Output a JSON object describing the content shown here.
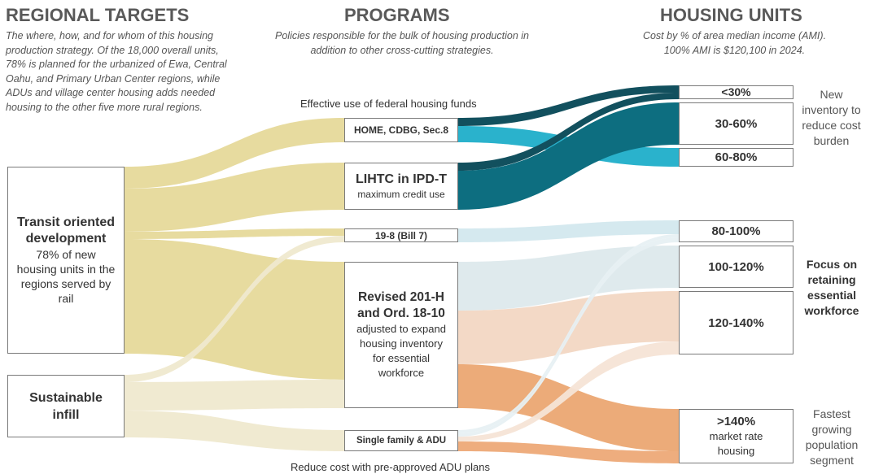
{
  "columns": {
    "targets": {
      "title": "REGIONAL TARGETS",
      "subtitle": "The where, how, and for whom of this housing production strategy. Of the 18,000 overall units, 78% is planned for the urbanized of Ewa, Central Oahu, and Primary Urban Center regions, while ADUs and village center housing adds needed housing to the other five more rural regions."
    },
    "programs": {
      "title": "PROGRAMS",
      "subtitle": "Policies responsible for the bulk of housing production in addition to other cross-cutting strategies."
    },
    "units": {
      "title": "HOUSING UNITS",
      "subtitle_line1": "Cost by % of area median income (AMI).",
      "subtitle_line2": "100% AMI is $120,100 in 2024."
    }
  },
  "targets": {
    "tod": {
      "title": "Transit oriented development",
      "desc": "78% of new housing units in the regions served by rail"
    },
    "infill": {
      "title": "Sustainable infill"
    }
  },
  "programs": {
    "home": {
      "title": "HOME, CDBG, Sec.8",
      "caption": "Effective use of federal housing funds"
    },
    "lihtc": {
      "title": "LIHTC in IPD-T",
      "desc": "maximum credit use"
    },
    "bill7": {
      "title": "19-8 (Bill 7)"
    },
    "revised": {
      "title": "Revised 201-H and Ord. 18-10",
      "desc": "adjusted to expand housing inventory for essential workforce"
    },
    "sfadu": {
      "title": "Single family & ADU",
      "caption": "Reduce cost with pre-approved ADU plans"
    }
  },
  "units": {
    "u30": {
      "title": "<30%"
    },
    "u3060": {
      "title": "30-60%"
    },
    "u6080": {
      "title": "60-80%"
    },
    "u80100": {
      "title": "80-100%"
    },
    "u100120": {
      "title": "100-120%"
    },
    "u120140": {
      "title": "120-140%"
    },
    "u140": {
      "title": ">140%",
      "desc": "market rate housing"
    }
  },
  "annotations": {
    "new_inventory": "New inventory to reduce cost burden",
    "focus": "Focus on retaining essential workforce",
    "fastest": "Fastest growing population segment"
  },
  "colors": {
    "tod": "#e6d99a",
    "infill": "#efe9cf",
    "home_to_30": "#12505e",
    "home_to_6080": "#2ab2cc",
    "lihtc": "#0d6e80",
    "bill7": "#d3e8ee",
    "revised_to_100120": "#dde9ec",
    "revised_to_120140": "#f2d7c3",
    "revised_to_140": "#eba672",
    "sfadu_to_middle": "#e7f0f3",
    "sfadu_to_120140": "#f6e4d6",
    "sfadu_to_140": "#eda977"
  }
}
